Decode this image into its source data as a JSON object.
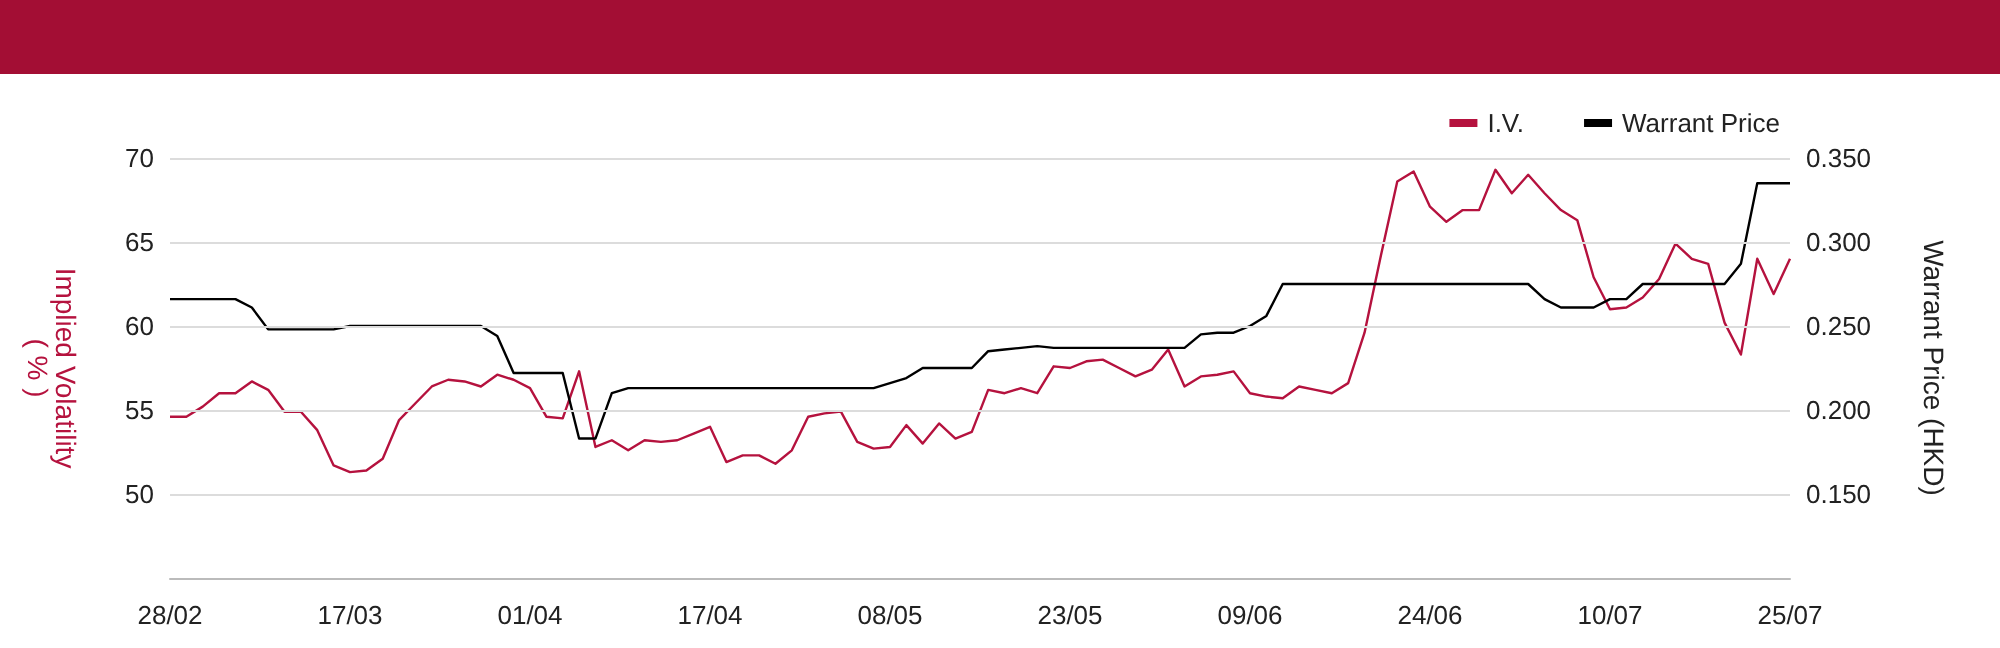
{
  "chart_data": {
    "type": "line",
    "categories": [
      "28/02",
      null,
      null,
      null,
      null,
      null,
      null,
      null,
      null,
      null,
      null,
      "17/03",
      null,
      null,
      null,
      null,
      null,
      null,
      null,
      null,
      null,
      null,
      "01/04",
      null,
      null,
      null,
      null,
      null,
      null,
      null,
      null,
      null,
      null,
      "17/04",
      null,
      null,
      null,
      null,
      null,
      null,
      null,
      null,
      null,
      null,
      "08/05",
      null,
      null,
      null,
      null,
      null,
      null,
      null,
      null,
      null,
      null,
      "23/05",
      null,
      null,
      null,
      null,
      null,
      null,
      null,
      null,
      null,
      null,
      "09/06",
      null,
      null,
      null,
      null,
      null,
      null,
      null,
      null,
      null,
      null,
      "24/06",
      null,
      null,
      null,
      null,
      null,
      null,
      null,
      null,
      null,
      null,
      "10/07",
      null,
      null,
      null,
      null,
      null,
      null,
      null,
      null,
      null,
      null,
      "25/07"
    ],
    "ylabel": "Implied Volatility\n( % )",
    "y2label": "Warrant Price (HKD)",
    "ylim": [
      45,
      70
    ],
    "yticks": [
      50,
      55,
      60,
      65,
      70
    ],
    "y2lim": [
      0.1,
      0.35
    ],
    "y2ticks": [
      {
        "value": 0.15,
        "label": "0.150"
      },
      {
        "value": 0.2,
        "label": "0.200"
      },
      {
        "value": 0.25,
        "label": "0.250"
      },
      {
        "value": 0.3,
        "label": "0.300"
      },
      {
        "value": 0.35,
        "label": "0.350"
      }
    ],
    "grid": "y",
    "legend": "top right",
    "marker": "none",
    "line_style": "solid",
    "series": [
      {
        "name": "I.V.",
        "color": "#b5123e",
        "values": [
          54.6,
          54.6,
          55.2,
          56.0,
          56.0,
          56.7,
          56.2,
          54.9,
          54.9,
          53.8,
          51.7,
          51.3,
          51.4,
          52.1,
          54.4,
          55.4,
          56.4,
          56.8,
          56.7,
          56.4,
          57.1,
          56.8,
          56.3,
          54.6,
          54.5,
          57.3,
          52.8,
          53.2,
          52.6,
          53.2,
          53.1,
          53.2,
          53.6,
          54.0,
          51.9,
          52.3,
          52.3,
          51.8,
          52.6,
          54.6,
          54.8,
          54.9,
          53.1,
          52.7,
          52.8,
          54.1,
          53.0,
          54.2,
          53.3,
          53.7,
          56.2,
          56.0,
          56.3,
          56.0,
          57.6,
          57.5,
          57.9,
          58.0,
          57.5,
          57.0,
          57.4,
          58.6,
          56.4,
          57.0,
          57.1,
          57.3,
          56.0,
          55.8,
          55.7,
          56.4,
          56.2,
          56.0,
          56.6,
          59.6,
          64.2,
          68.6,
          69.2,
          67.1,
          66.2,
          66.9,
          66.9,
          69.3,
          67.9,
          69.0,
          67.9,
          66.9,
          66.3,
          62.9,
          61.0,
          61.1,
          61.7,
          62.8,
          64.9,
          64.0,
          63.7,
          60.2,
          58.3,
          64.0,
          61.9,
          64.0
        ]
      },
      {
        "name": "Warrant Price",
        "color": "#000000",
        "axis": "y2",
        "values": [
          0.266,
          0.266,
          0.266,
          0.266,
          0.266,
          0.261,
          0.248,
          0.248,
          0.248,
          0.248,
          0.248,
          0.25,
          0.25,
          0.25,
          0.25,
          0.25,
          0.25,
          0.25,
          0.25,
          0.25,
          0.244,
          0.222,
          0.222,
          0.222,
          0.222,
          0.183,
          0.183,
          0.21,
          0.213,
          0.213,
          0.213,
          0.213,
          0.213,
          0.213,
          0.213,
          0.213,
          0.213,
          0.213,
          0.213,
          0.213,
          0.213,
          0.213,
          0.213,
          0.213,
          0.216,
          0.219,
          0.225,
          0.225,
          0.225,
          0.225,
          0.235,
          0.236,
          0.237,
          0.238,
          0.237,
          0.237,
          0.237,
          0.237,
          0.237,
          0.237,
          0.237,
          0.237,
          0.237,
          0.245,
          0.246,
          0.246,
          0.25,
          0.256,
          0.275,
          0.275,
          0.275,
          0.275,
          0.275,
          0.275,
          0.275,
          0.275,
          0.275,
          0.275,
          0.275,
          0.275,
          0.275,
          0.275,
          0.275,
          0.275,
          0.266,
          0.261,
          0.261,
          0.261,
          0.266,
          0.266,
          0.275,
          0.275,
          0.275,
          0.275,
          0.275,
          0.275,
          0.287,
          0.335,
          0.335,
          0.335
        ]
      }
    ]
  }
}
